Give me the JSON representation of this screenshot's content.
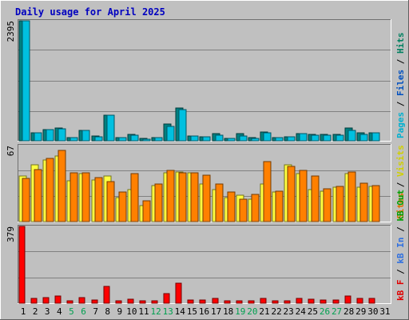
{
  "chart_data": [
    {
      "type": "bar",
      "title": "Daily usage for April 2025",
      "ymax_label": "2395",
      "ylim": [
        0,
        2395
      ],
      "categories": [
        "1",
        "2",
        "3",
        "4",
        "5",
        "6",
        "7",
        "8",
        "9",
        "10",
        "11",
        "12",
        "13",
        "14",
        "15",
        "16",
        "17",
        "18",
        "19",
        "20",
        "21",
        "22",
        "23",
        "24",
        "25",
        "26",
        "27",
        "28",
        "29",
        "30",
        "31"
      ],
      "weekend_days": [
        "5",
        "6",
        "12",
        "13",
        "19",
        "20",
        "26",
        "27"
      ],
      "series": [
        {
          "name": "Hits",
          "color": "#008080",
          "values": [
            2395,
            160,
            230,
            255,
            60,
            210,
            100,
            510,
            60,
            130,
            40,
            70,
            335,
            650,
            100,
            85,
            140,
            55,
            145,
            60,
            170,
            70,
            85,
            145,
            120,
            120,
            120,
            255,
            160,
            165,
            0
          ]
        },
        {
          "name": "Files",
          "color": "#0000ff",
          "values": [
            0,
            0,
            0,
            0,
            0,
            0,
            0,
            0,
            0,
            0,
            0,
            0,
            0,
            0,
            0,
            0,
            0,
            0,
            0,
            0,
            0,
            0,
            0,
            0,
            0,
            0,
            0,
            0,
            0,
            0,
            0
          ]
        },
        {
          "name": "Pages",
          "color": "#00c0e0",
          "values": [
            2395,
            160,
            230,
            240,
            60,
            200,
            85,
            510,
            60,
            110,
            35,
            65,
            290,
            630,
            100,
            85,
            115,
            50,
            95,
            55,
            165,
            70,
            80,
            140,
            115,
            110,
            110,
            215,
            135,
            155,
            0
          ]
        }
      ],
      "axis_labels": [
        {
          "text": "Pages",
          "color": "#00b0d0"
        },
        {
          "text": " / ",
          "color": "#000000"
        },
        {
          "text": "Files",
          "color": "#0050c0"
        },
        {
          "text": " / ",
          "color": "#000000"
        },
        {
          "text": "Hits",
          "color": "#008060"
        }
      ]
    },
    {
      "type": "bar",
      "ymax_label": "67",
      "ylim": [
        0,
        67
      ],
      "series": [
        {
          "name": "Visits",
          "color": "#ffff40",
          "values": [
            40,
            50,
            54,
            58,
            36,
            42,
            37,
            40,
            21,
            28,
            14,
            32,
            43,
            44,
            43,
            33,
            28,
            21,
            23,
            20,
            33,
            26,
            50,
            42,
            28,
            27,
            30,
            42,
            30,
            31,
            0
          ]
        },
        {
          "name": "Sites",
          "color": "#ff8000",
          "values": [
            38,
            46,
            56,
            63,
            43,
            43,
            39,
            35,
            26,
            42,
            18,
            33,
            45,
            43,
            43,
            41,
            33,
            26,
            20,
            24,
            53,
            27,
            49,
            45,
            40,
            29,
            31,
            44,
            34,
            32,
            0
          ]
        }
      ],
      "axis_labels": [
        {
          "text": "Sites",
          "color": "#e07000"
        },
        {
          "text": " / ",
          "color": "#000000"
        },
        {
          "text": "Visits",
          "color": "#d0d000"
        }
      ]
    },
    {
      "type": "bar",
      "ymax_label": "379",
      "ylim": [
        0,
        379
      ],
      "series": [
        {
          "name": "kB F",
          "color": "#ff0000",
          "values": [
            379,
            22,
            28,
            35,
            12,
            28,
            14,
            84,
            12,
            20,
            10,
            12,
            48,
            100,
            17,
            15,
            23,
            10,
            12,
            12,
            25,
            13,
            13,
            23,
            18,
            17,
            17,
            34,
            22,
            22,
            0
          ]
        },
        {
          "name": "kB In",
          "color": "#0000ff",
          "values": [
            0,
            0,
            0,
            0,
            0,
            0,
            0,
            0,
            0,
            0,
            0,
            0,
            0,
            0,
            0,
            0,
            0,
            0,
            0,
            0,
            0,
            0,
            0,
            0,
            0,
            0,
            0,
            0,
            0,
            0,
            0
          ]
        },
        {
          "name": "kB Out",
          "color": "#00a000",
          "values": [
            0,
            0,
            0,
            0,
            0,
            0,
            0,
            0,
            0,
            0,
            0,
            0,
            0,
            0,
            0,
            0,
            0,
            0,
            0,
            0,
            0,
            0,
            0,
            0,
            0,
            0,
            0,
            0,
            0,
            0,
            0
          ]
        }
      ],
      "axis_labels": [
        {
          "text": "kB F",
          "color": "#e00000"
        },
        {
          "text": " / ",
          "color": "#000000"
        },
        {
          "text": "kB In",
          "color": "#3070e0"
        },
        {
          "text": " / ",
          "color": "#000000"
        },
        {
          "text": "kB Out",
          "color": "#00a000"
        }
      ]
    }
  ],
  "colors": {
    "frame_bg": "#c0c0c0",
    "plot_bg": "#c0c0c0",
    "grid": "#808080",
    "title": "#0000c0",
    "day_label": "#000000",
    "weekend_label": "#00a050"
  }
}
